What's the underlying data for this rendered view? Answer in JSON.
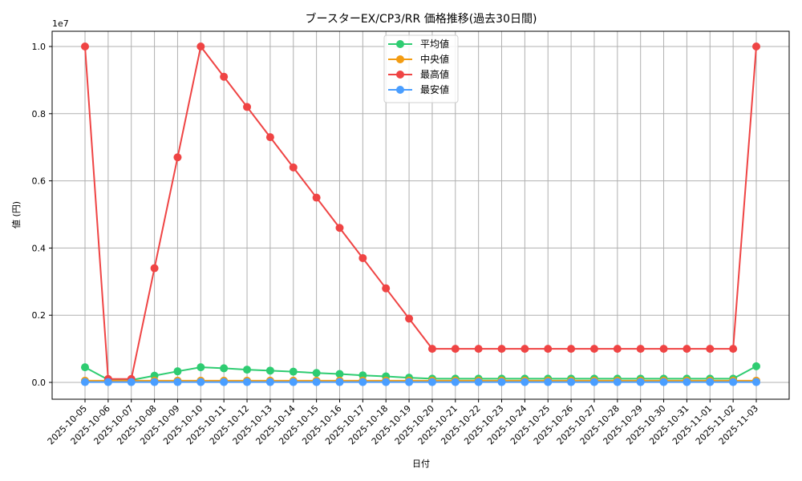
{
  "chart_data": {
    "type": "line",
    "title": "ブースターEX/CP3/RR 価格推移(過去30日間)",
    "xlabel": "日付",
    "ylabel": "値 (円)",
    "y_offset_label": "1e7",
    "ylim": [
      -500000,
      10500000
    ],
    "yticks": [
      0,
      2000000,
      4000000,
      6000000,
      8000000,
      10000000
    ],
    "ytick_labels": [
      "0.0",
      "0.2",
      "0.4",
      "0.6",
      "0.8",
      "1.0"
    ],
    "grid": true,
    "legend_position": "upper center",
    "categories": [
      "2025-10-05",
      "2025-10-06",
      "2025-10-07",
      "2025-10-08",
      "2025-10-09",
      "2025-10-10",
      "2025-10-11",
      "2025-10-12",
      "2025-10-13",
      "2025-10-14",
      "2025-10-15",
      "2025-10-16",
      "2025-10-17",
      "2025-10-18",
      "2025-10-19",
      "2025-10-20",
      "2025-10-21",
      "2025-10-22",
      "2025-10-23",
      "2025-10-24",
      "2025-10-25",
      "2025-10-26",
      "2025-10-27",
      "2025-10-28",
      "2025-10-29",
      "2025-10-30",
      "2025-10-31",
      "2025-11-01",
      "2025-11-02",
      "2025-11-03"
    ],
    "series": [
      {
        "name": "平均値",
        "color": "#2ecc71",
        "values": [
          450000,
          80000,
          70000,
          200000,
          330000,
          450000,
          420000,
          380000,
          350000,
          320000,
          280000,
          250000,
          210000,
          180000,
          140000,
          110000,
          110000,
          110000,
          110000,
          110000,
          110000,
          110000,
          110000,
          110000,
          110000,
          110000,
          110000,
          110000,
          110000,
          480000
        ]
      },
      {
        "name": "中央値",
        "color": "#f39c12",
        "values": [
          50000,
          50000,
          50000,
          50000,
          50000,
          50000,
          50000,
          50000,
          50000,
          50000,
          50000,
          50000,
          50000,
          50000,
          50000,
          50000,
          50000,
          50000,
          50000,
          50000,
          50000,
          50000,
          50000,
          50000,
          50000,
          50000,
          50000,
          50000,
          50000,
          50000
        ]
      },
      {
        "name": "最高値",
        "color": "#ef4444",
        "values": [
          10000000,
          100000,
          100000,
          3400000,
          6700000,
          10000000,
          9100000,
          8200000,
          7300000,
          6400000,
          5500000,
          4600000,
          3700000,
          2800000,
          1900000,
          1000000,
          1000000,
          1000000,
          1000000,
          1000000,
          1000000,
          1000000,
          1000000,
          1000000,
          1000000,
          1000000,
          1000000,
          1000000,
          1000000,
          10000000
        ]
      },
      {
        "name": "最安値",
        "color": "#4a9eff",
        "values": [
          10000,
          10000,
          10000,
          10000,
          10000,
          10000,
          10000,
          10000,
          10000,
          10000,
          10000,
          10000,
          10000,
          10000,
          10000,
          10000,
          10000,
          10000,
          10000,
          10000,
          10000,
          10000,
          10000,
          10000,
          10000,
          10000,
          10000,
          10000,
          10000,
          10000
        ]
      }
    ]
  }
}
